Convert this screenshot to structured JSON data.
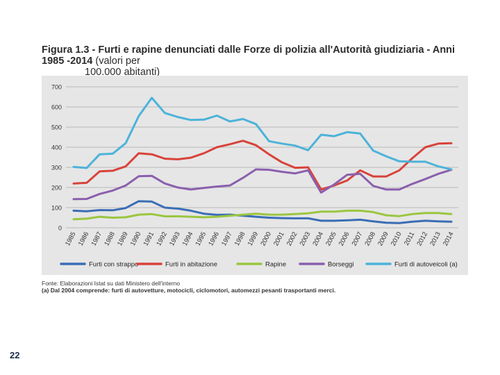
{
  "title": {
    "bold": "Figura 1.3 -  Furti e rapine denunciati dalle Forze di polizia all'Autorità giudiziaria - Anni 1985 -2014",
    "light1": " (valori per",
    "light2": "100.000 abitanti)"
  },
  "source": {
    "line1": "Fonte: Elaborazioni Istat su dati Ministero dell'interno",
    "line2": "(a) Dal 2004 comprende: furti di autovetture, motocicli, ciclomotori, automezzi pesanti trasportanti merci."
  },
  "page_number": "22",
  "chart_data": {
    "type": "line",
    "title": "Furti e rapine denunciati dalle Forze di polizia all'Autorità giudiziaria - Anni 1985 -2014",
    "xlabel": "",
    "ylabel": "",
    "ylim": [
      0,
      700
    ],
    "yticks": [
      "0",
      "100",
      "200",
      "300",
      "400",
      "500",
      "600",
      "700"
    ],
    "grid": true,
    "legend_position": "bottom",
    "categories": [
      "1985",
      "1986",
      "1987",
      "1988",
      "1989",
      "1990",
      "1991",
      "1992",
      "1993",
      "1994",
      "1995",
      "1996",
      "1997",
      "1998",
      "1999",
      "2000",
      "2001",
      "2002",
      "2003",
      "2004",
      "2005",
      "2006",
      "2007",
      "2008",
      "2009",
      "2010",
      "2011",
      "2012",
      "2013",
      "2014"
    ],
    "series": [
      {
        "name": "Furti con strappo",
        "color": "#3a6db5",
        "values": [
          85,
          82,
          88,
          87,
          98,
          132,
          130,
          100,
          95,
          85,
          70,
          64,
          65,
          60,
          55,
          50,
          48,
          47,
          47,
          35,
          35,
          37,
          40,
          32,
          25,
          23,
          30,
          35,
          32,
          30
        ]
      },
      {
        "name": "Furti in abitazione",
        "color": "#d8433a",
        "values": [
          220,
          223,
          280,
          283,
          305,
          370,
          365,
          343,
          340,
          348,
          370,
          400,
          415,
          432,
          410,
          365,
          325,
          298,
          300,
          190,
          210,
          235,
          285,
          255,
          255,
          285,
          345,
          400,
          418,
          420
        ]
      },
      {
        "name": "Rapine",
        "color": "#9ac640",
        "values": [
          42,
          45,
          55,
          50,
          52,
          65,
          68,
          57,
          57,
          55,
          52,
          55,
          60,
          65,
          70,
          65,
          65,
          68,
          72,
          80,
          80,
          85,
          85,
          78,
          62,
          58,
          68,
          73,
          73,
          68
        ]
      },
      {
        "name": "Borseggi",
        "color": "#8a5fae",
        "values": [
          142,
          143,
          168,
          185,
          210,
          256,
          258,
          220,
          200,
          190,
          198,
          205,
          210,
          248,
          290,
          288,
          278,
          270,
          285,
          175,
          215,
          263,
          268,
          208,
          190,
          190,
          218,
          242,
          268,
          288
        ]
      },
      {
        "name": "Furti di autoveicoli (a)",
        "color": "#4cb3d9",
        "values": [
          302,
          297,
          365,
          368,
          420,
          555,
          645,
          570,
          550,
          535,
          537,
          557,
          528,
          540,
          515,
          430,
          418,
          408,
          385,
          462,
          455,
          475,
          468,
          383,
          355,
          330,
          328,
          328,
          305,
          290
        ]
      }
    ]
  }
}
